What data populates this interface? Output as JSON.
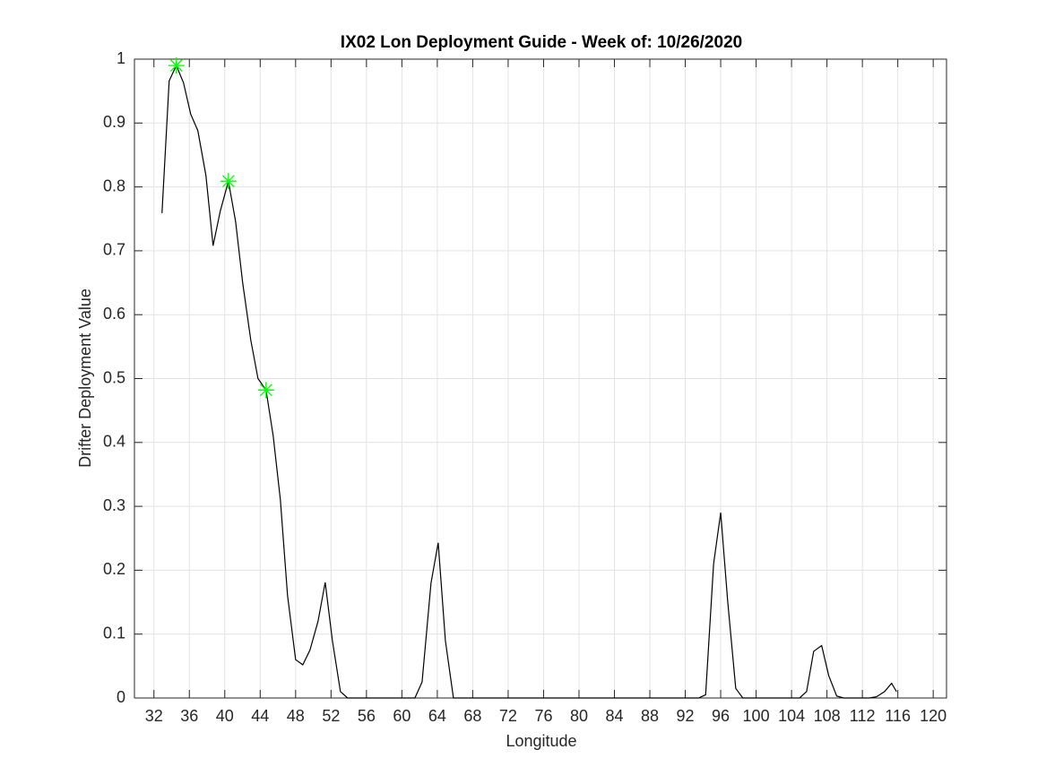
{
  "chart_data": {
    "type": "line",
    "title": "IX02 Lon Deployment Guide - Week of: 10/26/2020",
    "xlabel": "Longitude",
    "ylabel": "Drifter Deployment Value",
    "x": [
      32.91,
      33.72,
      34.53,
      35.34,
      36.15,
      36.96,
      37.87,
      38.68,
      39.49,
      40.41,
      41.22,
      42.03,
      42.94,
      43.75,
      44.66,
      45.47,
      46.28,
      47.09,
      48.0,
      48.81,
      49.62,
      50.53,
      51.34,
      52.15,
      53.06,
      53.87,
      61.47,
      62.28,
      63.29,
      64.1,
      64.91,
      65.82,
      93.5,
      94.3,
      95.2,
      96.0,
      96.8,
      97.7,
      98.5,
      104.9,
      105.7,
      106.5,
      107.4,
      108.2,
      109.1,
      109.9,
      112.8,
      113.6,
      114.5,
      115.3,
      115.85
    ],
    "values": [
      0.759,
      0.966,
      0.99,
      0.963,
      0.914,
      0.888,
      0.818,
      0.708,
      0.762,
      0.809,
      0.746,
      0.649,
      0.56,
      0.5,
      0.482,
      0.41,
      0.31,
      0.16,
      0.06,
      0.052,
      0.075,
      0.12,
      0.181,
      0.09,
      0.01,
      0,
      0,
      0.025,
      0.18,
      0.243,
      0.09,
      0,
      0,
      0.005,
      0.21,
      0.29,
      0.15,
      0.015,
      0,
      0,
      0.01,
      0.073,
      0.082,
      0.035,
      0.003,
      0,
      0,
      0.002,
      0.01,
      0.023,
      0.01
    ],
    "color": "#000000",
    "markers": {
      "x": [
        34.53,
        40.41,
        44.66
      ],
      "values": [
        0.99,
        0.809,
        0.482
      ],
      "color": "#00ff00"
    },
    "xlim": [
      29.8,
      121.5
    ],
    "ylim": [
      0,
      1
    ],
    "xticks": [
      32,
      36,
      40,
      44,
      48,
      52,
      56,
      60,
      64,
      68,
      72,
      76,
      80,
      84,
      88,
      92,
      96,
      100,
      104,
      108,
      112,
      116,
      120
    ],
    "yticks": [
      0,
      0.1,
      0.2,
      0.3,
      0.4,
      0.5,
      0.6,
      0.7,
      0.8,
      0.9,
      1
    ],
    "grid": true
  }
}
